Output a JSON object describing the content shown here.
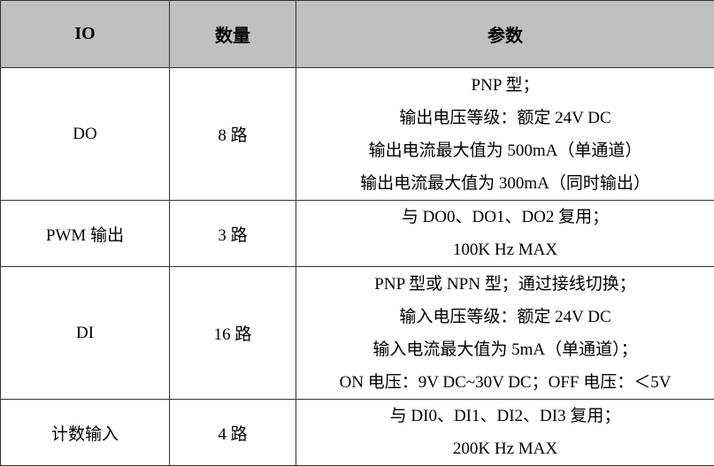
{
  "headers": [
    "IO",
    "数量",
    "参数"
  ],
  "rows": [
    {
      "io": "DO",
      "count": "8 路",
      "params": [
        "PNP 型；",
        "输出电压等级：额定 24V DC",
        "输出电流最大值为 500mA（单通道）",
        "输出电流最大值为 300mA（同时输出）"
      ]
    },
    {
      "io": "PWM 输出",
      "count": "3 路",
      "params": [
        "与 DO0、DO1、DO2 复用；",
        "100K Hz MAX"
      ]
    },
    {
      "io": "DI",
      "count": "16 路",
      "params": [
        "PNP 型或 NPN 型；通过接线切换；",
        "输入电压等级：额定 24V DC",
        "输入电流最大值为 5mA（单通道）；",
        "ON 电压：9V DC~30V DC；OFF 电压：＜5V"
      ]
    },
    {
      "io": "计数输入",
      "count": "4 路",
      "params": [
        "与 DI0、DI1、DI2、DI3 复用；",
        "200K Hz MAX"
      ]
    }
  ]
}
